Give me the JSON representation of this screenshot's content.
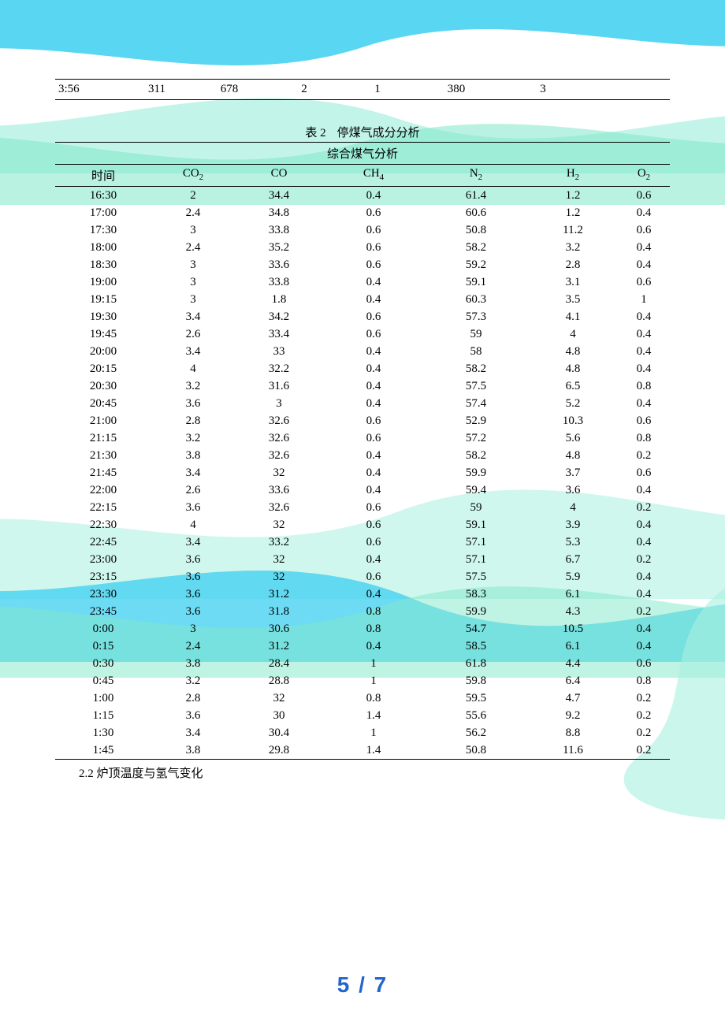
{
  "colors": {
    "wave_cyan": "#3ccff0",
    "wave_aqua": "#a8f0e0",
    "wave_green": "#7fe8c8",
    "wave_light": "#d0f8ef",
    "page_num": "#2266cc",
    "text": "#000000",
    "bg": "#ffffff"
  },
  "top_row": {
    "cells": [
      "3:56",
      "311",
      "678",
      "2",
      "1",
      "380",
      "3",
      ""
    ]
  },
  "table": {
    "caption_label": "表 2",
    "caption_title": "停煤气成分分析",
    "subtitle": "综合煤气分析",
    "columns": [
      {
        "label": "时间",
        "sub": ""
      },
      {
        "label": "CO",
        "sub": "2"
      },
      {
        "label": "CO",
        "sub": ""
      },
      {
        "label": "CH",
        "sub": "4"
      },
      {
        "label": "N",
        "sub": "2"
      },
      {
        "label": "H",
        "sub": "2"
      },
      {
        "label": "O",
        "sub": "2"
      }
    ],
    "rows": [
      [
        "16:30",
        "2",
        "34.4",
        "0.4",
        "61.4",
        "1.2",
        "0.6"
      ],
      [
        "17:00",
        "2.4",
        "34.8",
        "0.6",
        "60.6",
        "1.2",
        "0.4"
      ],
      [
        "17:30",
        "3",
        "33.8",
        "0.6",
        "50.8",
        "11.2",
        "0.6"
      ],
      [
        "18:00",
        "2.4",
        "35.2",
        "0.6",
        "58.2",
        "3.2",
        "0.4"
      ],
      [
        "18:30",
        "3",
        "33.6",
        "0.6",
        "59.2",
        "2.8",
        "0.4"
      ],
      [
        "19:00",
        "3",
        "33.8",
        "0.4",
        "59.1",
        "3.1",
        "0.6"
      ],
      [
        "19:15",
        "3",
        "1.8",
        "0.4",
        "60.3",
        "3.5",
        "1"
      ],
      [
        "19:30",
        "3.4",
        "34.2",
        "0.6",
        "57.3",
        "4.1",
        "0.4"
      ],
      [
        "19:45",
        "2.6",
        "33.4",
        "0.6",
        "59",
        "4",
        "0.4"
      ],
      [
        "20:00",
        "3.4",
        "33",
        "0.4",
        "58",
        "4.8",
        "0.4"
      ],
      [
        "20:15",
        "4",
        "32.2",
        "0.4",
        "58.2",
        "4.8",
        "0.4"
      ],
      [
        "20:30",
        "3.2",
        "31.6",
        "0.4",
        "57.5",
        "6.5",
        "0.8"
      ],
      [
        "20:45",
        "3.6",
        "3",
        "0.4",
        "57.4",
        "5.2",
        "0.4"
      ],
      [
        "21:00",
        "2.8",
        "32.6",
        "0.6",
        "52.9",
        "10.3",
        "0.6"
      ],
      [
        "21:15",
        "3.2",
        "32.6",
        "0.6",
        "57.2",
        "5.6",
        "0.8"
      ],
      [
        "21:30",
        "3.8",
        "32.6",
        "0.4",
        "58.2",
        "4.8",
        "0.2"
      ],
      [
        "21:45",
        "3.4",
        "32",
        "0.4",
        "59.9",
        "3.7",
        "0.6"
      ],
      [
        "22:00",
        "2.6",
        "33.6",
        "0.4",
        "59.4",
        "3.6",
        "0.4"
      ],
      [
        "22:15",
        "3.6",
        "32.6",
        "0.6",
        "59",
        "4",
        "0.2"
      ],
      [
        "22:30",
        "4",
        "32",
        "0.6",
        "59.1",
        "3.9",
        "0.4"
      ],
      [
        "22:45",
        "3.4",
        "33.2",
        "0.6",
        "57.1",
        "5.3",
        "0.4"
      ],
      [
        "23:00",
        "3.6",
        "32",
        "0.4",
        "57.1",
        "6.7",
        "0.2"
      ],
      [
        "23:15",
        "3.6",
        "32",
        "0.6",
        "57.5",
        "5.9",
        "0.4"
      ],
      [
        "23:30",
        "3.6",
        "31.2",
        "0.4",
        "58.3",
        "6.1",
        "0.4"
      ],
      [
        "23:45",
        "3.6",
        "31.8",
        "0.8",
        "59.9",
        "4.3",
        "0.2"
      ],
      [
        "0:00",
        "3",
        "30.6",
        "0.8",
        "54.7",
        "10.5",
        "0.4"
      ],
      [
        "0:15",
        "2.4",
        "31.2",
        "0.4",
        "58.5",
        "6.1",
        "0.4"
      ],
      [
        "0:30",
        "3.8",
        "28.4",
        "1",
        "61.8",
        "4.4",
        "0.6"
      ],
      [
        "0:45",
        "3.2",
        "28.8",
        "1",
        "59.8",
        "6.4",
        "0.8"
      ],
      [
        "1:00",
        "2.8",
        "32",
        "0.8",
        "59.5",
        "4.7",
        "0.2"
      ],
      [
        "1:15",
        "3.6",
        "30",
        "1.4",
        "55.6",
        "9.2",
        "0.2"
      ],
      [
        "1:30",
        "3.4",
        "30.4",
        "1",
        "56.2",
        "8.8",
        "0.2"
      ],
      [
        "1:45",
        "3.8",
        "29.8",
        "1.4",
        "50.8",
        "11.6",
        "0.2"
      ]
    ]
  },
  "section_heading": "2.2 炉顶温度与氢气变化",
  "page_number": "5 / 7"
}
